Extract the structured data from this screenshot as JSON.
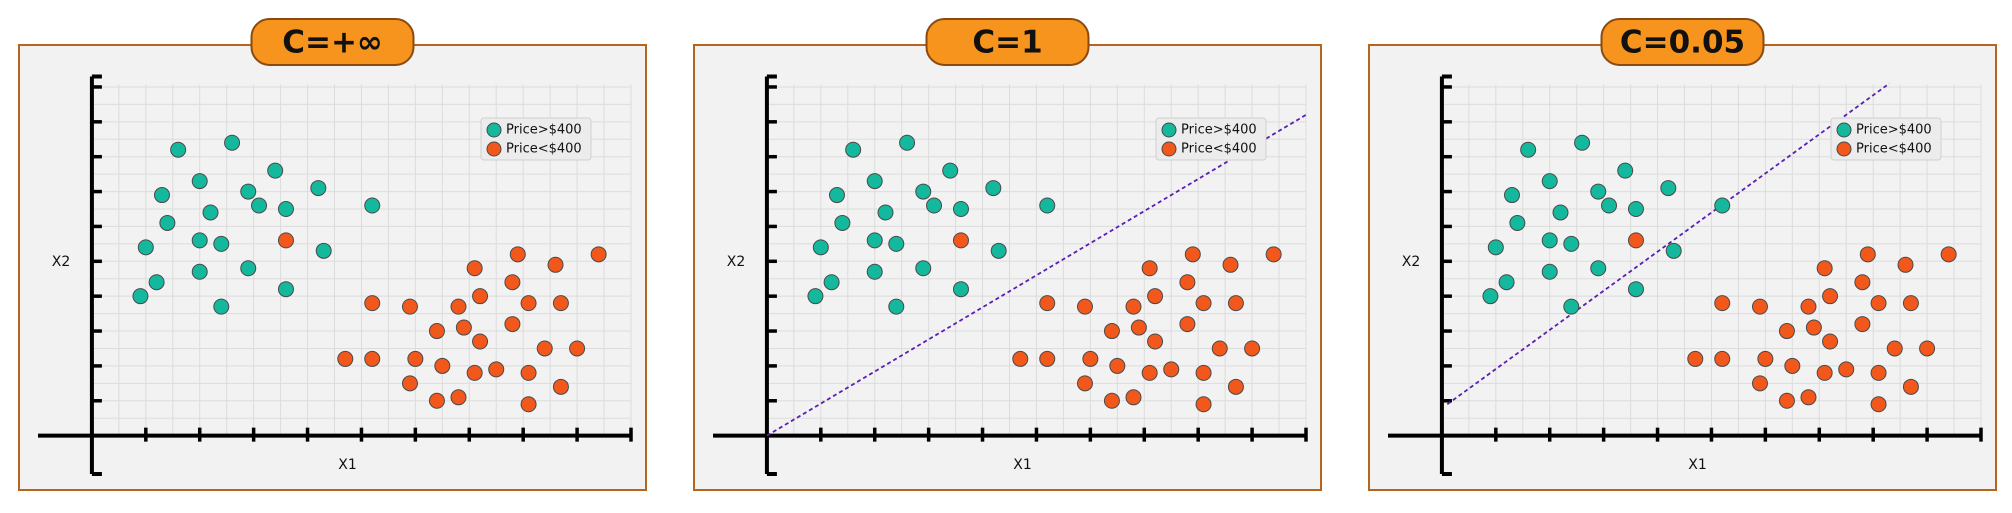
{
  "chart_data": [
    {
      "type": "scatter",
      "title": "C=+∞",
      "xlabel": "X1",
      "ylabel": "X2",
      "xlim": [
        -1,
        10
      ],
      "ylim": [
        -1.1,
        10.3
      ],
      "grid": true,
      "legend": "upper right",
      "series": [
        {
          "name": "Price>$400",
          "color": "#14b89c",
          "x": [
            0.9,
            1.2,
            1.0,
            1.4,
            1.3,
            1.6,
            2.0,
            2.2,
            2.0,
            2.4,
            2.0,
            2.4,
            2.6,
            2.9,
            3.1,
            2.9,
            3.4,
            3.6,
            3.6,
            4.2,
            4.3,
            5.2
          ],
          "y": [
            4.0,
            4.4,
            5.4,
            6.1,
            6.9,
            8.2,
            7.3,
            6.4,
            5.6,
            5.5,
            4.7,
            3.7,
            8.4,
            7.0,
            6.6,
            4.8,
            7.6,
            6.5,
            4.2,
            7.1,
            5.3,
            6.6
          ]
        },
        {
          "name": "Price<$400",
          "color": "#f2581b",
          "x": [
            3.6,
            4.7,
            5.2,
            5.2,
            5.9,
            6.0,
            5.9,
            6.4,
            6.4,
            6.5,
            6.8,
            6.8,
            6.9,
            7.1,
            7.2,
            7.2,
            7.1,
            7.5,
            7.8,
            7.8,
            7.9,
            8.1,
            8.1,
            8.1,
            8.4,
            8.6,
            8.7,
            8.7,
            9.0,
            9.4
          ],
          "y": [
            5.6,
            2.2,
            2.2,
            3.8,
            3.7,
            2.2,
            1.5,
            1.0,
            3.0,
            2.0,
            1.1,
            3.7,
            3.1,
            4.8,
            4.0,
            2.7,
            1.8,
            1.9,
            4.4,
            3.2,
            5.2,
            3.8,
            1.8,
            0.9,
            2.5,
            4.9,
            3.8,
            1.4,
            2.5,
            5.2
          ]
        }
      ]
    },
    {
      "type": "scatter",
      "title": "C=1",
      "xlabel": "X1",
      "ylabel": "X2",
      "xlim": [
        -1,
        10
      ],
      "ylim": [
        -1.1,
        10.3
      ],
      "grid": true,
      "legend": "upper right",
      "series": [
        {
          "name": "Price>$400",
          "color": "#14b89c",
          "x": [
            0.9,
            1.2,
            1.0,
            1.4,
            1.3,
            1.6,
            2.0,
            2.2,
            2.0,
            2.4,
            2.0,
            2.4,
            2.6,
            2.9,
            3.1,
            2.9,
            3.4,
            3.6,
            3.6,
            4.2,
            4.3,
            5.2
          ],
          "y": [
            4.0,
            4.4,
            5.4,
            6.1,
            6.9,
            8.2,
            7.3,
            6.4,
            5.6,
            5.5,
            4.7,
            3.7,
            8.4,
            7.0,
            6.6,
            4.8,
            7.6,
            6.5,
            4.2,
            7.1,
            5.3,
            6.6
          ]
        },
        {
          "name": "Price<$400",
          "color": "#f2581b",
          "x": [
            3.6,
            4.7,
            5.2,
            5.2,
            5.9,
            6.0,
            5.9,
            6.4,
            6.4,
            6.5,
            6.8,
            6.8,
            6.9,
            7.1,
            7.2,
            7.2,
            7.1,
            7.5,
            7.8,
            7.8,
            7.9,
            8.1,
            8.1,
            8.1,
            8.4,
            8.6,
            8.7,
            8.7,
            9.0,
            9.4
          ],
          "y": [
            5.6,
            2.2,
            2.2,
            3.8,
            3.7,
            2.2,
            1.5,
            1.0,
            3.0,
            2.0,
            1.1,
            3.7,
            3.1,
            4.8,
            4.0,
            2.7,
            1.8,
            1.9,
            4.4,
            3.2,
            5.2,
            3.8,
            1.8,
            0.9,
            2.5,
            4.9,
            3.8,
            1.4,
            2.5,
            5.2
          ]
        }
      ],
      "boundary": {
        "color": "#5b1fb0",
        "x": [
          0,
          10
        ],
        "y": [
          0,
          9.2
        ]
      }
    },
    {
      "type": "scatter",
      "title": "C=0.05",
      "xlabel": "X1",
      "ylabel": "X2",
      "xlim": [
        -1,
        10
      ],
      "ylim": [
        -1.1,
        10.3
      ],
      "grid": true,
      "legend": "upper right",
      "series": [
        {
          "name": "Price>$400",
          "color": "#14b89c",
          "x": [
            0.9,
            1.2,
            1.0,
            1.4,
            1.3,
            1.6,
            2.0,
            2.2,
            2.0,
            2.4,
            2.0,
            2.4,
            2.6,
            2.9,
            3.1,
            2.9,
            3.4,
            3.6,
            3.6,
            4.2,
            4.3,
            5.2
          ],
          "y": [
            4.0,
            4.4,
            5.4,
            6.1,
            6.9,
            8.2,
            7.3,
            6.4,
            5.6,
            5.5,
            4.7,
            3.7,
            8.4,
            7.0,
            6.6,
            4.8,
            7.6,
            6.5,
            4.2,
            7.1,
            5.3,
            6.6
          ]
        },
        {
          "name": "Price<$400",
          "color": "#f2581b",
          "x": [
            3.6,
            4.7,
            5.2,
            5.2,
            5.9,
            6.0,
            5.9,
            6.4,
            6.4,
            6.5,
            6.8,
            6.8,
            6.9,
            7.1,
            7.2,
            7.2,
            7.1,
            7.5,
            7.8,
            7.8,
            7.9,
            8.1,
            8.1,
            8.1,
            8.4,
            8.6,
            8.7,
            8.7,
            9.0,
            9.4
          ],
          "y": [
            5.6,
            2.2,
            2.2,
            3.8,
            3.7,
            2.2,
            1.5,
            1.0,
            3.0,
            2.0,
            1.1,
            3.7,
            3.1,
            4.8,
            4.0,
            2.7,
            1.8,
            1.9,
            4.4,
            3.2,
            5.2,
            3.8,
            1.8,
            0.9,
            2.5,
            4.9,
            3.8,
            1.4,
            2.5,
            5.2
          ]
        }
      ],
      "boundary": {
        "color": "#5b1fb0",
        "x": [
          0.1,
          8.3
        ],
        "y": [
          0.9,
          10.1
        ]
      }
    }
  ]
}
